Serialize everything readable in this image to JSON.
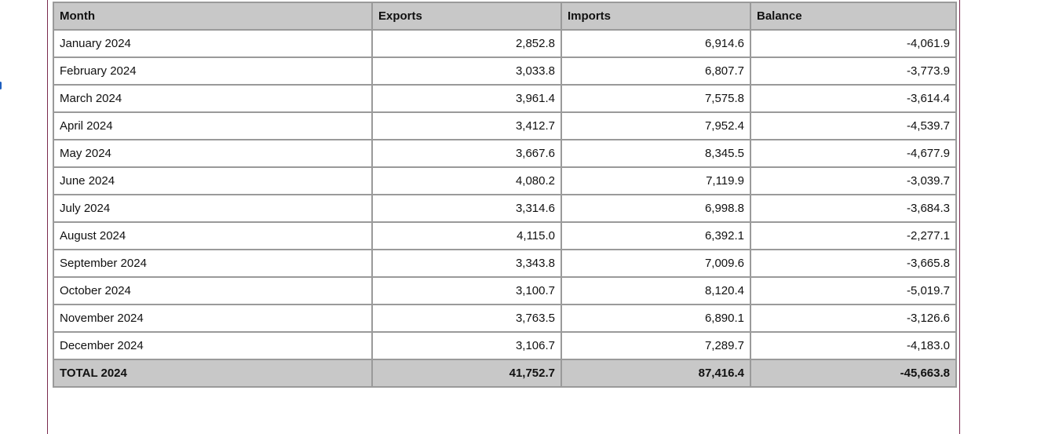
{
  "table": {
    "headers": {
      "month": "Month",
      "exports": "Exports",
      "imports": "Imports",
      "balance": "Balance"
    },
    "rows": [
      {
        "month": "January 2024",
        "exports": "2,852.8",
        "imports": "6,914.6",
        "balance": "-4,061.9"
      },
      {
        "month": "February 2024",
        "exports": "3,033.8",
        "imports": "6,807.7",
        "balance": "-3,773.9"
      },
      {
        "month": "March 2024",
        "exports": "3,961.4",
        "imports": "7,575.8",
        "balance": "-3,614.4"
      },
      {
        "month": "April 2024",
        "exports": "3,412.7",
        "imports": "7,952.4",
        "balance": "-4,539.7"
      },
      {
        "month": "May 2024",
        "exports": "3,667.6",
        "imports": "8,345.5",
        "balance": "-4,677.9"
      },
      {
        "month": "June 2024",
        "exports": "4,080.2",
        "imports": "7,119.9",
        "balance": "-3,039.7"
      },
      {
        "month": "July 2024",
        "exports": "3,314.6",
        "imports": "6,998.8",
        "balance": "-3,684.3"
      },
      {
        "month": "August 2024",
        "exports": "4,115.0",
        "imports": "6,392.1",
        "balance": "-2,277.1"
      },
      {
        "month": "September 2024",
        "exports": "3,343.8",
        "imports": "7,009.6",
        "balance": "-3,665.8"
      },
      {
        "month": "October 2024",
        "exports": "3,100.7",
        "imports": "8,120.4",
        "balance": "-5,019.7"
      },
      {
        "month": "November 2024",
        "exports": "3,763.5",
        "imports": "6,890.1",
        "balance": "-3,126.6"
      },
      {
        "month": "December 2024",
        "exports": "3,106.7",
        "imports": "7,289.7",
        "balance": "-4,183.0"
      }
    ],
    "total": {
      "month": "TOTAL 2024",
      "exports": "41,752.7",
      "imports": "87,416.4",
      "balance": "-45,663.8"
    }
  },
  "colors": {
    "header_bg": "#c8c8c8",
    "border": "#9a9a9a",
    "page_rule": "#7a2a4e"
  }
}
